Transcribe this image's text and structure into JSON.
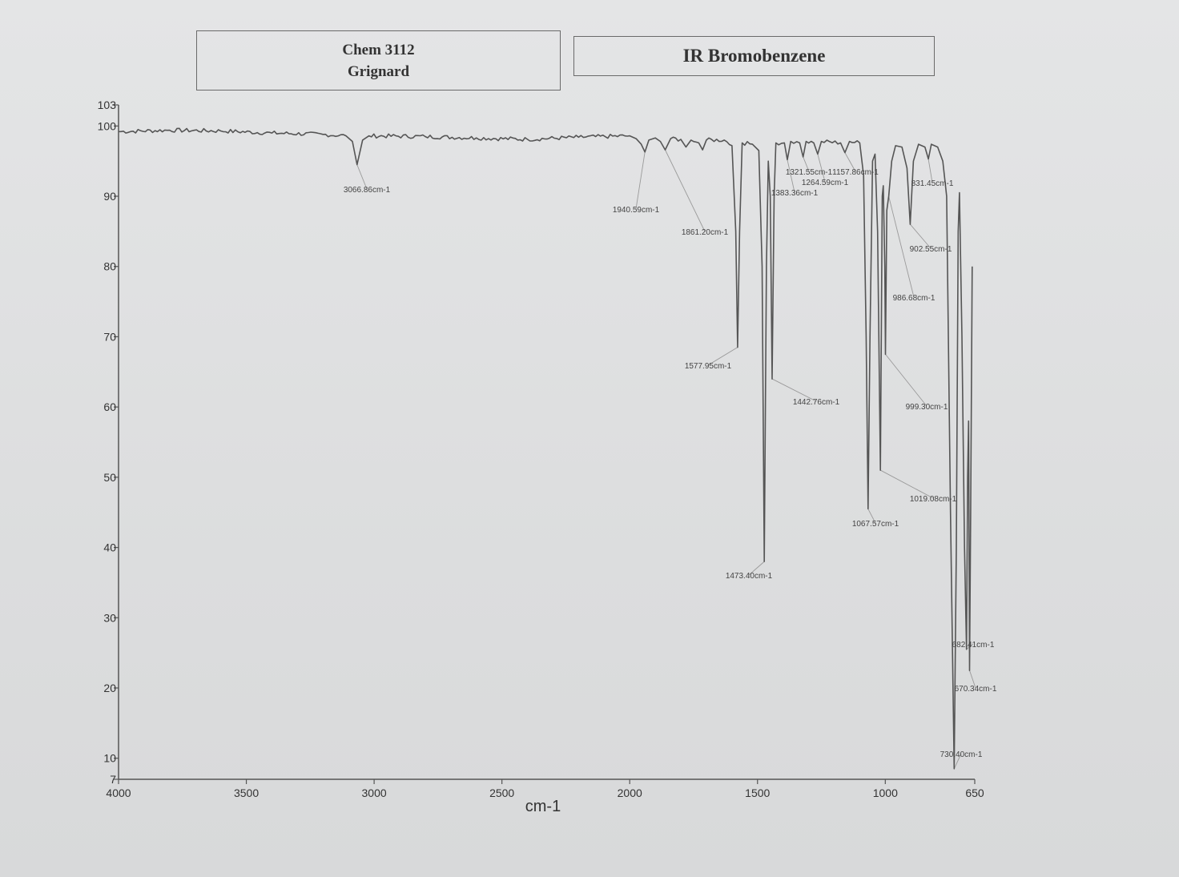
{
  "header": {
    "left_box": {
      "line1": "Chem 3112",
      "line2": "Grignard"
    },
    "right_box": {
      "title": "IR Bromobenzene"
    }
  },
  "chart_data": {
    "type": "line",
    "title": "IR Bromobenzene",
    "xlabel": "cm-1",
    "ylabel": "",
    "xlim": [
      4000,
      650
    ],
    "ylim": [
      7,
      103
    ],
    "x_reversed": true,
    "grid": false,
    "x_ticks": [
      4000,
      3500,
      3000,
      2500,
      2000,
      1500,
      1000,
      650
    ],
    "y_ticks": [
      7,
      10,
      20,
      30,
      40,
      50,
      60,
      70,
      80,
      90,
      100,
      103
    ],
    "series": [
      {
        "points": [
          [
            4000,
            99.2
          ],
          [
            3800,
            99.4
          ],
          [
            3600,
            99.3
          ],
          [
            3400,
            99.0
          ],
          [
            3200,
            98.8
          ],
          [
            3110,
            98.6
          ],
          [
            3085,
            97.8
          ],
          [
            3066.86,
            94.5
          ],
          [
            3045,
            98.0
          ],
          [
            3020,
            98.6
          ],
          [
            2800,
            98.5
          ],
          [
            2600,
            98.3
          ],
          [
            2400,
            98.1
          ],
          [
            2200,
            98.4
          ],
          [
            2000,
            98.6
          ],
          [
            1975,
            98.2
          ],
          [
            1955,
            97.4
          ],
          [
            1940.59,
            96.3
          ],
          [
            1925,
            98.0
          ],
          [
            1900,
            98.3
          ],
          [
            1880,
            97.8
          ],
          [
            1861.2,
            96.6
          ],
          [
            1840,
            98.2
          ],
          [
            1800,
            98.1
          ],
          [
            1780,
            97.0
          ],
          [
            1760,
            98.0
          ],
          [
            1730,
            97.6
          ],
          [
            1715,
            96.6
          ],
          [
            1700,
            98.0
          ],
          [
            1630,
            98.0
          ],
          [
            1600,
            97.2
          ],
          [
            1585,
            85.0
          ],
          [
            1577.95,
            68.5
          ],
          [
            1570,
            85.0
          ],
          [
            1560,
            97.6
          ],
          [
            1520,
            97.4
          ],
          [
            1495,
            96.5
          ],
          [
            1482,
            80.0
          ],
          [
            1473.4,
            38.0
          ],
          [
            1465,
            80.0
          ],
          [
            1458,
            95.0
          ],
          [
            1450,
            90.0
          ],
          [
            1442.76,
            64.0
          ],
          [
            1435,
            90.0
          ],
          [
            1428,
            97.6
          ],
          [
            1395,
            97.6
          ],
          [
            1383.36,
            95.2
          ],
          [
            1370,
            97.8
          ],
          [
            1335,
            97.6
          ],
          [
            1321.55,
            95.6
          ],
          [
            1310,
            97.8
          ],
          [
            1280,
            97.6
          ],
          [
            1264.59,
            96.0
          ],
          [
            1250,
            97.8
          ],
          [
            1175,
            97.6
          ],
          [
            1157.86,
            96.2
          ],
          [
            1140,
            97.8
          ],
          [
            1100,
            97.6
          ],
          [
            1085,
            93.0
          ],
          [
            1075,
            70.0
          ],
          [
            1067.57,
            45.5
          ],
          [
            1060,
            70.0
          ],
          [
            1050,
            95.0
          ],
          [
            1040,
            96.0
          ],
          [
            1030,
            85.0
          ],
          [
            1019.08,
            51.0
          ],
          [
            1012,
            90.0
          ],
          [
            1008,
            91.5
          ],
          [
            1002,
            80.0
          ],
          [
            999.3,
            67.5
          ],
          [
            994,
            88.0
          ],
          [
            986.68,
            90.0
          ],
          [
            975,
            95.0
          ],
          [
            960,
            97.2
          ],
          [
            935,
            97.0
          ],
          [
            915,
            94.0
          ],
          [
            902.55,
            86.0
          ],
          [
            890,
            95.0
          ],
          [
            870,
            97.4
          ],
          [
            845,
            97.0
          ],
          [
            831.45,
            95.3
          ],
          [
            820,
            97.4
          ],
          [
            795,
            97.0
          ],
          [
            775,
            95.0
          ],
          [
            760,
            90.0
          ],
          [
            745,
            45.0
          ],
          [
            730.4,
            8.5
          ],
          [
            722,
            40.0
          ],
          [
            715,
            85.0
          ],
          [
            710,
            90.5
          ],
          [
            700,
            70.0
          ],
          [
            690,
            40.0
          ],
          [
            682.41,
            25.5
          ],
          [
            678,
            50.0
          ],
          [
            674,
            58.0
          ],
          [
            670.34,
            22.5
          ],
          [
            666,
            45.0
          ],
          [
            660,
            80.0
          ]
        ]
      }
    ],
    "peaks": [
      {
        "wn": 3066.86,
        "label": "3066.86cm-1"
      },
      {
        "wn": 1940.59,
        "label": "1940.59cm-1"
      },
      {
        "wn": 1861.2,
        "label": "1861.20cm-1"
      },
      {
        "wn": 1577.95,
        "label": "1577.95cm-1"
      },
      {
        "wn": 1473.4,
        "label": "1473.40cm-1"
      },
      {
        "wn": 1442.76,
        "label": "1442.76cm-1"
      },
      {
        "wn": 1383.36,
        "label": "1383.36cm-1"
      },
      {
        "wn": 1321.55,
        "label": "1321.55cm-1"
      },
      {
        "wn": 1264.59,
        "label": "1264.59cm-1"
      },
      {
        "wn": 1157.86,
        "label": "1157.86cm-1"
      },
      {
        "wn": 1067.57,
        "label": "1067.57cm-1"
      },
      {
        "wn": 1019.08,
        "label": "1019.08cm-1"
      },
      {
        "wn": 999.3,
        "label": "999.30cm-1"
      },
      {
        "wn": 986.68,
        "label": "986.68cm-1"
      },
      {
        "wn": 902.55,
        "label": "902.55cm-1"
      },
      {
        "wn": 831.45,
        "label": "831.45cm-1"
      },
      {
        "wn": 730.4,
        "label": "730.40cm-1"
      },
      {
        "wn": 682.41,
        "label": "682.41cm-1"
      },
      {
        "wn": 670.34,
        "label": "670.34cm-1"
      }
    ],
    "colors": {
      "line": "#555555",
      "axis": "#555555",
      "leader": "#9a9a9a"
    }
  }
}
